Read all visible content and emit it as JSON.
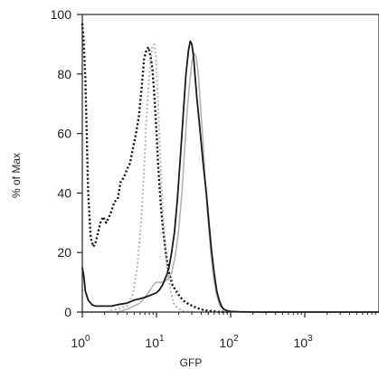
{
  "chart_data": {
    "type": "line",
    "title": "",
    "xlabel": "GFP",
    "ylabel": "% of Max",
    "x_scale": "log",
    "xlim": [
      1,
      10000
    ],
    "ylim": [
      0,
      100
    ],
    "grid": false,
    "legend": "none",
    "x_ticks": [
      {
        "value": 1,
        "base": "10",
        "exp": "0"
      },
      {
        "value": 10,
        "base": "10",
        "exp": "1"
      },
      {
        "value": 100,
        "base": "10",
        "exp": "2"
      },
      {
        "value": 1000,
        "base": "10",
        "exp": "3"
      }
    ],
    "y_ticks": [
      {
        "value": 0,
        "label": "0"
      },
      {
        "value": 20,
        "label": "20"
      },
      {
        "value": 40,
        "label": "40"
      },
      {
        "value": 60,
        "label": "60"
      },
      {
        "value": 80,
        "label": "80"
      },
      {
        "value": 100,
        "label": "100"
      }
    ],
    "series": [
      {
        "color": "#111111",
        "dash": "2,2.5",
        "width": 2.4,
        "x": [
          1.0,
          1.05,
          1.1,
          1.2,
          1.3,
          1.4,
          1.5,
          1.6,
          1.75,
          1.9,
          2.1,
          2.4,
          2.7,
          3.0,
          3.3,
          3.6,
          4.0,
          4.4,
          4.8,
          5.3,
          5.8,
          6.3,
          6.8,
          7.3,
          7.8,
          8.3,
          8.8,
          9.3,
          9.9,
          10.6,
          11.5,
          12.5,
          13.5,
          14.8,
          16.5,
          18.5,
          21.0,
          24.0,
          28.0,
          32.0,
          37.0,
          42.0,
          48.0,
          55.0,
          62.0,
          68.0,
          75.0,
          90.0
        ],
        "y": [
          97,
          90,
          78,
          40,
          25,
          22,
          23,
          26,
          30,
          32,
          30,
          33,
          37,
          38,
          44,
          45,
          48,
          50,
          55,
          60,
          66,
          75,
          85,
          88,
          89,
          86,
          82,
          74,
          63,
          48,
          35,
          26,
          19,
          13,
          9,
          7,
          5,
          3.5,
          2.5,
          1.8,
          1.2,
          0.8,
          0.5,
          0.3,
          0.2,
          0.1,
          0.05,
          0
        ]
      },
      {
        "color": "#b5b5b5",
        "dash": "2,2.5",
        "width": 2.0,
        "x": [
          1.0,
          2.0,
          3.0,
          4.0,
          4.8,
          5.5,
          6.2,
          6.8,
          7.3,
          7.8,
          8.3,
          8.8,
          9.3,
          9.8,
          10.3,
          11.0,
          11.8,
          12.8,
          14.0,
          15.5,
          17.0,
          19.0,
          22.0,
          26.0,
          32.0
        ],
        "y": [
          0,
          0,
          1,
          2,
          6,
          15,
          30,
          48,
          65,
          76,
          84,
          89,
          90,
          86,
          75,
          58,
          40,
          25,
          14,
          7,
          3,
          1.5,
          0.5,
          0.2,
          0
        ]
      },
      {
        "color": "#b3b3b3",
        "dash": "",
        "width": 1.6,
        "x": [
          1.0,
          1.1,
          1.3,
          1.6,
          2.0,
          2.5,
          3.0,
          3.5,
          4.0,
          5.0,
          6.0,
          7.0,
          8.0,
          9.0,
          10.0,
          11.0,
          12.5,
          14.0,
          16.0,
          18.0,
          20.0,
          22.0,
          24.0,
          26.0,
          28.0,
          30.0,
          32.0,
          34.0,
          36.0,
          38.0,
          40.0,
          43.0,
          46.0,
          50.0,
          55.0,
          60.0,
          66.0,
          72.0,
          80.0,
          90.0,
          100.0
        ],
        "y": [
          0,
          0,
          0,
          0,
          0,
          0,
          0,
          0.5,
          1,
          2,
          3,
          5,
          7,
          9,
          10,
          10,
          10,
          11,
          13,
          19,
          28,
          40,
          55,
          68,
          77,
          84,
          87,
          86,
          82,
          75,
          66,
          55,
          42,
          30,
          18,
          10,
          5,
          2,
          1,
          0.3,
          0
        ]
      },
      {
        "color": "#1a1a1a",
        "dash": "",
        "width": 1.8,
        "x": [
          1.0,
          1.05,
          1.1,
          1.2,
          1.35,
          1.5,
          1.7,
          2.0,
          2.5,
          3.0,
          4.0,
          5.0,
          6.0,
          7.0,
          8.0,
          9.0,
          10.0,
          11.0,
          12.0,
          13.0,
          14.0,
          15.0,
          16.0,
          17.5,
          19.0,
          21.0,
          23.0,
          25.0,
          27.0,
          28.5,
          30.0,
          31.5,
          33.0,
          35.0,
          37.0,
          40.0,
          43.0,
          47.0,
          51.0,
          55.0,
          60.0,
          65.0,
          70.0,
          75.0,
          80.0,
          90.0,
          100.0,
          130.0,
          200.0,
          500.0,
          2000.0,
          10000.0
        ],
        "y": [
          15,
          12,
          7,
          4,
          2.5,
          2,
          2,
          2,
          2,
          2.5,
          3,
          4,
          4.5,
          5,
          5.5,
          6,
          6.5,
          7.5,
          9,
          11,
          13,
          16,
          20,
          27,
          37,
          52,
          67,
          80,
          88,
          91,
          90,
          86,
          80,
          72,
          66,
          57,
          49,
          40,
          30,
          21,
          13,
          7,
          4,
          2,
          1,
          0.4,
          0.2,
          0.1,
          0,
          0,
          0,
          0
        ]
      }
    ]
  }
}
